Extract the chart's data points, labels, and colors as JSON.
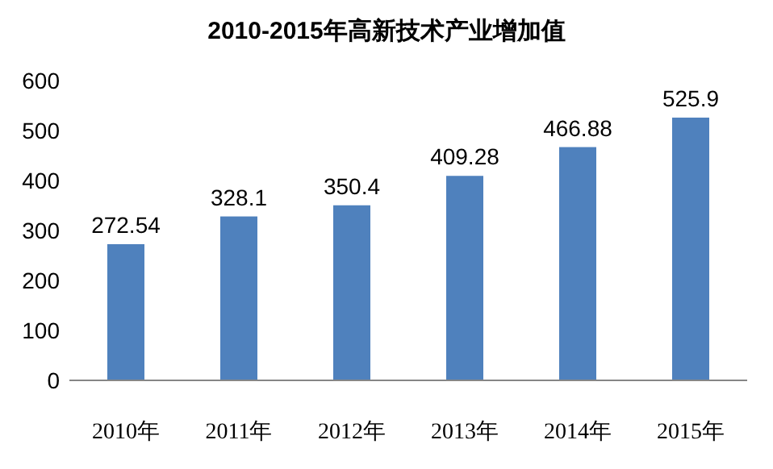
{
  "chart_data": {
    "type": "bar",
    "title": "2010-2015年高新技术产业增加值",
    "categories": [
      "2010年",
      "2011年",
      "2012年",
      "2013年",
      "2014年",
      "2015年"
    ],
    "values": [
      272.54,
      328.1,
      350.4,
      409.28,
      466.88,
      525.9
    ],
    "color": "#4f81bd",
    "ylim": [
      0,
      600
    ],
    "yticks": [
      0,
      100,
      200,
      300,
      400,
      500,
      600
    ],
    "data_labels": true
  }
}
